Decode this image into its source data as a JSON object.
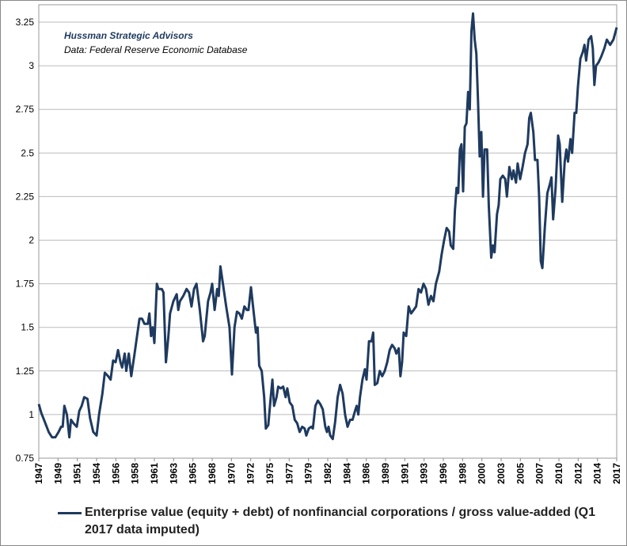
{
  "chart_data": {
    "type": "line",
    "annotations": [
      "Hussman Strategic Advisors",
      "Data: Federal Reserve Economic Database"
    ],
    "x": [
      1947,
      1947.3,
      1947.8,
      1948.2,
      1948.6,
      1949.0,
      1949.4,
      1949.7,
      1949.9,
      1950.1,
      1950.4,
      1950.7,
      1950.9,
      1951.2,
      1951.6,
      1951.9,
      1952.2,
      1952.5,
      1952.9,
      1953.2,
      1953.6,
      1954.0,
      1954.3,
      1954.7,
      1955.0,
      1955.4,
      1955.7,
      1956.0,
      1956.3,
      1956.6,
      1956.9,
      1957.1,
      1957.4,
      1957.6,
      1957.9,
      1958.2,
      1958.6,
      1958.9,
      1959.2,
      1959.5,
      1959.8,
      1960.2,
      1960.4,
      1960.6,
      1960.8,
      1961.0,
      1961.3,
      1961.5,
      1961.9,
      1962.1,
      1962.4,
      1962.7,
      1962.9,
      1963.3,
      1963.7,
      1963.9,
      1964.1,
      1964.5,
      1964.9,
      1965.2,
      1965.5,
      1965.8,
      1966.1,
      1966.5,
      1966.9,
      1967.1,
      1967.5,
      1967.8,
      1968.0,
      1968.3,
      1968.6,
      1968.8,
      1969.0,
      1969.3,
      1969.7,
      1970.1,
      1970.4,
      1970.7,
      1971.0,
      1971.3,
      1971.6,
      1971.9,
      1972.2,
      1972.4,
      1972.7,
      1973.0,
      1973.3,
      1973.5,
      1973.7,
      1974.0,
      1974.3,
      1974.5,
      1974.8,
      1975.1,
      1975.3,
      1975.5,
      1975.8,
      1976.0,
      1976.3,
      1976.6,
      1976.9,
      1977.1,
      1977.4,
      1977.7,
      1978.0,
      1978.3,
      1978.6,
      1978.9,
      1979.2,
      1979.4,
      1979.7,
      1980.0,
      1980.2,
      1980.5,
      1980.8,
      1981.1,
      1981.4,
      1981.7,
      1981.9,
      1982.1,
      1982.3,
      1982.6,
      1982.9,
      1983.2,
      1983.5,
      1983.8,
      1984.1,
      1984.4,
      1984.7,
      1985.0,
      1985.3,
      1985.5,
      1985.7,
      1985.9,
      1986.2,
      1986.5,
      1986.7,
      1987.0,
      1987.3,
      1987.5,
      1987.7,
      1988.0,
      1988.3,
      1988.6,
      1988.9,
      1989.2,
      1989.5,
      1989.8,
      1990.1,
      1990.3,
      1990.6,
      1990.8,
      1991.0,
      1991.2,
      1991.5,
      1991.8,
      1992.1,
      1992.4,
      1992.7,
      1993.0,
      1993.3,
      1993.6,
      1993.9,
      1994.2,
      1994.5,
      1994.8,
      1995.1,
      1995.5,
      1995.8,
      1996.1,
      1996.4,
      1996.7,
      1996.9,
      1997.2,
      1997.4,
      1997.6,
      1997.8,
      1998.0,
      1998.2,
      1998.4,
      1998.6,
      1998.8,
      1999.0,
      1999.2,
      1999.4,
      1999.6,
      1999.8,
      2000.0,
      2000.2,
      2000.4,
      2000.6,
      2000.8,
      2001.0,
      2001.3,
      2001.5,
      2001.8,
      2002.0,
      2002.2,
      2002.5,
      2002.7,
      2002.9,
      2003.2,
      2003.5,
      2003.7,
      2004.0,
      2004.3,
      2004.5,
      2004.8,
      2005.0,
      2005.3,
      2005.6,
      2005.9,
      2006.2,
      2006.4,
      2006.6,
      2006.9,
      2007.1,
      2007.4,
      2007.6,
      2007.8,
      2008.0,
      2008.3,
      2008.6,
      2008.9,
      2009.1,
      2009.3,
      2009.6,
      2009.9,
      2010.1,
      2010.4,
      2010.7,
      2010.9,
      2011.1,
      2011.4,
      2011.6,
      2011.9,
      2012.1,
      2012.3,
      2012.6,
      2012.9,
      2013.1,
      2013.3,
      2013.6,
      2013.9,
      2014.1,
      2014.3,
      2014.5,
      2014.8,
      2015.1,
      2015.5,
      2015.8,
      2016.2,
      2016.6,
      2017.0
    ],
    "series": [
      {
        "name": "Enterprise value (equity + debt) of nonfinancial corporations / gross value-added (Q1 2017 data imputed)",
        "color": "#1f3a5f",
        "values": [
          1.06,
          1.01,
          0.95,
          0.9,
          0.87,
          0.87,
          0.9,
          0.93,
          0.93,
          1.05,
          1.0,
          0.87,
          0.97,
          0.95,
          0.93,
          1.02,
          1.05,
          1.1,
          1.09,
          0.98,
          0.9,
          0.88,
          1.0,
          1.12,
          1.24,
          1.22,
          1.2,
          1.31,
          1.3,
          1.37,
          1.3,
          1.27,
          1.35,
          1.25,
          1.35,
          1.22,
          1.35,
          1.45,
          1.55,
          1.55,
          1.52,
          1.52,
          1.58,
          1.45,
          1.5,
          1.41,
          1.75,
          1.72,
          1.72,
          1.7,
          1.3,
          1.45,
          1.58,
          1.65,
          1.69,
          1.6,
          1.65,
          1.68,
          1.72,
          1.7,
          1.62,
          1.72,
          1.75,
          1.6,
          1.42,
          1.45,
          1.65,
          1.7,
          1.75,
          1.6,
          1.72,
          1.68,
          1.85,
          1.75,
          1.62,
          1.5,
          1.23,
          1.5,
          1.59,
          1.58,
          1.55,
          1.62,
          1.6,
          1.6,
          1.73,
          1.6,
          1.47,
          1.5,
          1.28,
          1.25,
          1.1,
          0.92,
          0.94,
          1.1,
          1.2,
          1.05,
          1.1,
          1.16,
          1.15,
          1.16,
          1.1,
          1.15,
          1.07,
          1.05,
          0.97,
          0.95,
          0.9,
          0.93,
          0.92,
          0.88,
          0.92,
          0.93,
          0.92,
          1.05,
          1.08,
          1.06,
          1.03,
          0.93,
          0.9,
          0.93,
          0.88,
          0.86,
          0.96,
          1.1,
          1.17,
          1.12,
          1.0,
          0.93,
          0.97,
          0.97,
          1.02,
          1.05,
          1.0,
          1.1,
          1.2,
          1.26,
          1.2,
          1.42,
          1.42,
          1.47,
          1.17,
          1.18,
          1.25,
          1.22,
          1.25,
          1.3,
          1.37,
          1.4,
          1.38,
          1.35,
          1.38,
          1.22,
          1.3,
          1.47,
          1.45,
          1.62,
          1.58,
          1.6,
          1.62,
          1.72,
          1.7,
          1.75,
          1.72,
          1.63,
          1.68,
          1.65,
          1.75,
          1.82,
          1.92,
          2.0,
          2.07,
          2.05,
          1.97,
          1.95,
          2.17,
          2.3,
          2.27,
          2.52,
          2.55,
          2.28,
          2.65,
          2.67,
          2.85,
          2.75,
          3.2,
          3.3,
          3.15,
          3.07,
          2.8,
          2.48,
          2.62,
          2.25,
          2.52,
          2.52,
          2.2,
          1.9,
          1.97,
          1.93,
          2.15,
          2.2,
          2.35,
          2.37,
          2.35,
          2.25,
          2.42,
          2.35,
          2.4,
          2.33,
          2.44,
          2.35,
          2.42,
          2.5,
          2.55,
          2.7,
          2.73,
          2.62,
          2.46,
          2.46,
          2.25,
          1.88,
          1.84,
          2.08,
          2.27,
          2.32,
          2.36,
          2.12,
          2.3,
          2.6,
          2.55,
          2.22,
          2.45,
          2.52,
          2.45,
          2.58,
          2.5,
          2.73,
          2.73,
          2.88,
          3.04,
          3.08,
          3.12,
          3.03,
          3.15,
          3.17,
          3.1,
          2.89,
          3.0,
          3.02,
          3.05,
          3.1,
          3.15,
          3.12,
          3.15,
          3.22
        ]
      }
    ],
    "xlim": [
      1947,
      2017
    ],
    "xticks": [
      1947,
      {
        "value": 1949.33,
        "label": "1949"
      },
      {
        "value": 1951.67,
        "label": "1951"
      },
      1954,
      {
        "value": 1956.33,
        "label": "1956"
      },
      {
        "value": 1958.67,
        "label": "1958"
      },
      1961,
      {
        "value": 1963.33,
        "label": "1963"
      },
      {
        "value": 1965.67,
        "label": "1965"
      },
      1968,
      {
        "value": 1970.33,
        "label": "1970"
      },
      {
        "value": 1972.67,
        "label": "1972"
      },
      1975,
      {
        "value": 1977.33,
        "label": "1977"
      },
      {
        "value": 1979.67,
        "label": "1979"
      },
      1982,
      {
        "value": 1984.33,
        "label": "1984"
      },
      {
        "value": 1986.67,
        "label": "1986"
      },
      1989,
      {
        "value": 1991.33,
        "label": "1991"
      },
      {
        "value": 1993.67,
        "label": "1993"
      },
      1996,
      {
        "value": 1998.33,
        "label": "1998"
      },
      {
        "value": 2000.67,
        "label": "2000"
      },
      2003,
      {
        "value": 2005.33,
        "label": "2005"
      },
      {
        "value": 2007.67,
        "label": "2007"
      },
      2010,
      {
        "value": 2012.33,
        "label": "2012"
      },
      {
        "value": 2014.67,
        "label": "2014"
      },
      2017
    ],
    "ylim": [
      0.75,
      3.35
    ],
    "yticks": [
      0.75,
      1,
      1.25,
      1.5,
      1.75,
      2,
      2.25,
      2.5,
      2.75,
      3,
      3.25
    ],
    "grid": true
  }
}
